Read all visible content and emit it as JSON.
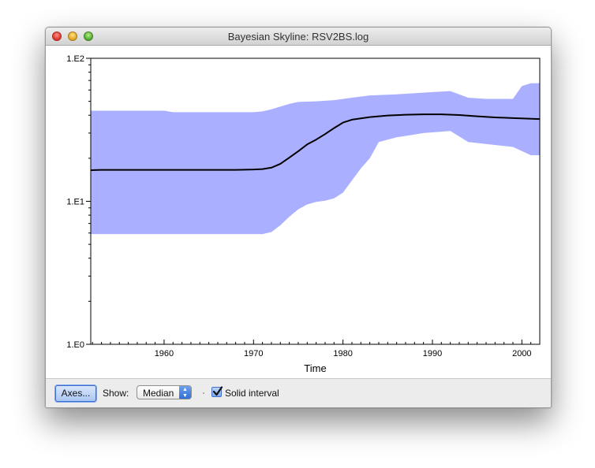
{
  "window": {
    "title": "Bayesian Skyline: RSV2BS.log"
  },
  "controls": {
    "axes_button": "Axes...",
    "show_label": "Show:",
    "show_value": "Median",
    "solid_interval_label": "Solid interval",
    "solid_interval_checked": true
  },
  "colors": {
    "band": "#aab0ff",
    "line": "#000000"
  },
  "chart_data": {
    "type": "area",
    "title": "",
    "xlabel": "Time",
    "ylabel": "",
    "yscale": "log",
    "xlim": [
      1951.8,
      2002
    ],
    "ylim": [
      1,
      100
    ],
    "x_ticks": [
      1960,
      1970,
      1980,
      1990,
      2000
    ],
    "x_tick_labels": [
      "1960",
      "1970",
      "1980",
      "1990",
      "2000"
    ],
    "y_tick_labels": [
      "1.E0",
      "1.E1",
      "1.E2"
    ],
    "y_tick_values": [
      1,
      10,
      100
    ],
    "series": [
      {
        "role": "median",
        "x": [
          1951.8,
          1953,
          1960,
          1968,
          1970,
          1971,
          1972,
          1973,
          1974,
          1975,
          1976,
          1977,
          1978,
          1979,
          1980,
          1981,
          1983,
          1985,
          1987,
          1989,
          1991,
          1993,
          1995,
          1997,
          1999,
          2002
        ],
        "y": [
          16.5,
          16.6,
          16.6,
          16.6,
          16.7,
          16.8,
          17.2,
          18.3,
          20.2,
          22.4,
          25.0,
          27.0,
          29.5,
          32.5,
          35.5,
          37.2,
          38.8,
          39.8,
          40.3,
          40.6,
          40.6,
          40.1,
          39.3,
          38.6,
          38.2,
          37.6
        ]
      },
      {
        "role": "upper",
        "x": [
          1951.8,
          1960,
          1961,
          1970,
          1971,
          1972,
          1973,
          1974,
          1975,
          1977,
          1979,
          1981,
          1983,
          1986,
          1990,
          1992,
          1994,
          1996,
          1999,
          2000,
          2001,
          2002
        ],
        "y": [
          43,
          43,
          42,
          42,
          42.5,
          44,
          46,
          48,
          49.5,
          50,
          51,
          53,
          55,
          56,
          58,
          59,
          53,
          52,
          52,
          64,
          67,
          67
        ]
      },
      {
        "role": "lower",
        "x": [
          1951.8,
          1971,
          1972,
          1973,
          1974,
          1975,
          1976,
          1977,
          1978,
          1979,
          1980,
          1981,
          1982,
          1983,
          1984,
          1986,
          1989,
          1992,
          1994,
          1999,
          2001,
          2002
        ],
        "y": [
          5.9,
          5.9,
          6.1,
          6.8,
          7.8,
          8.8,
          9.5,
          9.9,
          10.1,
          10.5,
          11.5,
          14,
          17,
          20,
          26,
          28,
          30,
          31,
          26,
          24,
          21,
          21
        ]
      }
    ]
  }
}
